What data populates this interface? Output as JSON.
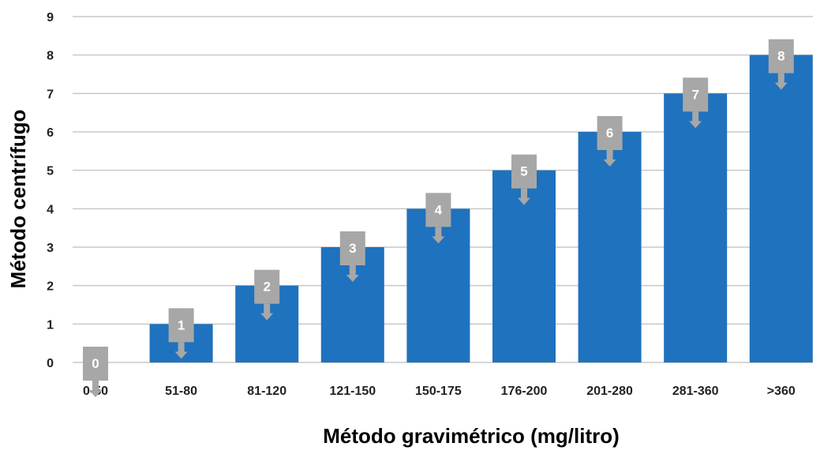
{
  "chart_data": {
    "type": "bar",
    "title": "",
    "xlabel": "Método gravimétrico (mg/litro)",
    "ylabel": "Método centrífugo",
    "categories": [
      "0-50",
      "51-80",
      "81-120",
      "121-150",
      "150-175",
      "176-200",
      "201-280",
      "281-360",
      ">360"
    ],
    "values": [
      0,
      1,
      2,
      3,
      4,
      5,
      6,
      7,
      8
    ],
    "data_labels": [
      "0",
      "1",
      "2",
      "3",
      "4",
      "5",
      "6",
      "7",
      "8"
    ],
    "ylim": [
      0,
      9
    ],
    "yticks": [
      "0",
      "1",
      "2",
      "3",
      "4",
      "5",
      "6",
      "7",
      "8",
      "9"
    ],
    "grid": true,
    "legend": "none",
    "colors": {
      "bar": "#1f72bd",
      "grid": "#c8c8c8",
      "label_box": "#a7a7a7"
    }
  }
}
